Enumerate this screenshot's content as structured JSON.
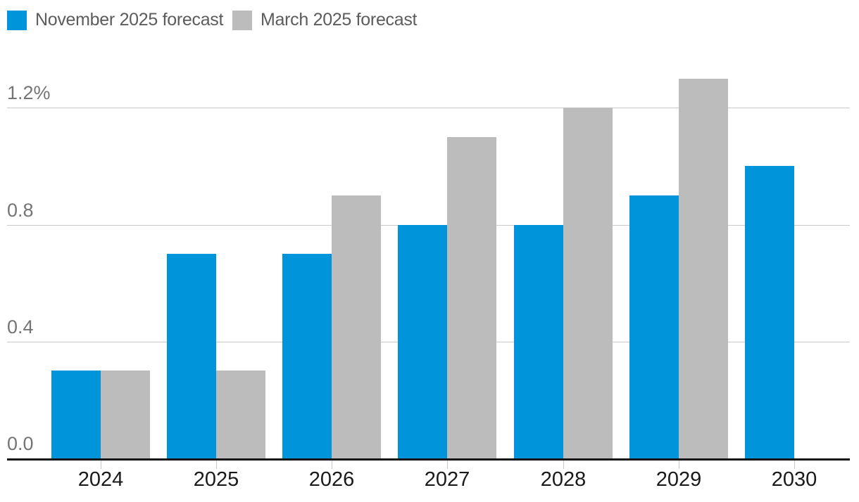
{
  "legend": {
    "items": [
      {
        "label": "November 2025 forecast",
        "color": "#0094da"
      },
      {
        "label": "March 2025 forecast",
        "color": "#bcbcbc"
      }
    ]
  },
  "chart_data": {
    "type": "bar",
    "title": "",
    "categories": [
      "2024",
      "2025",
      "2026",
      "2027",
      "2028",
      "2029",
      "2030"
    ],
    "series": [
      {
        "name": "November 2025 forecast",
        "color": "#0094da",
        "values": [
          0.3,
          0.7,
          0.7,
          0.8,
          0.8,
          0.9,
          1.0
        ]
      },
      {
        "name": "March 2025 forecast",
        "color": "#bcbcbc",
        "values": [
          0.3,
          0.3,
          0.9,
          1.1,
          1.2,
          1.3,
          null
        ]
      }
    ],
    "unit": "%",
    "y_axis": {
      "ticks": [
        0,
        0.4,
        0.8,
        1.2
      ],
      "tick_labels": [
        "0.0",
        "0.4",
        "0.8",
        "1.2%"
      ],
      "range": [
        0,
        1.32
      ]
    },
    "x_axis": {
      "tick_labels": [
        "2024",
        "2025",
        "2026",
        "2027",
        "2028",
        "2029",
        "2030"
      ]
    },
    "grid": "horizontal",
    "legend_position": "top-left"
  },
  "colors": {
    "background": "#ffffff",
    "axis_line": "#161616",
    "gridline": "#c9c9c9",
    "tick": "#c9c9c9",
    "y_label_text": "#757575",
    "x_label_text": "#1a1a1a",
    "legend_text": "#5c5c5c"
  }
}
